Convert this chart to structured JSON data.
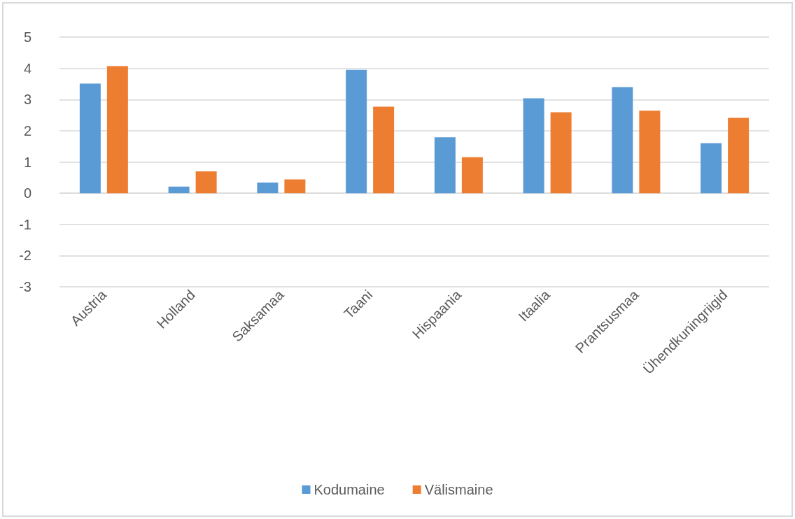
{
  "chart_data": {
    "type": "bar",
    "categories": [
      "Austria",
      "Holland",
      "Saksamaa",
      "Taani",
      "Hispaania",
      "Itaalia",
      "Prantsusmaa",
      "Ühendkuningriigid"
    ],
    "series": [
      {
        "name": "Kodumaine",
        "color": "#5b9bd5",
        "values": [
          3.51,
          0.21,
          0.34,
          3.95,
          1.79,
          3.04,
          3.4,
          1.6
        ]
      },
      {
        "name": "Välismaine",
        "color": "#ed7d31",
        "values": [
          4.07,
          0.7,
          0.44,
          2.77,
          1.15,
          2.59,
          2.64,
          2.41
        ]
      }
    ],
    "ylim": [
      -3,
      5
    ],
    "yticks": [
      -3,
      -2,
      -1,
      0,
      1,
      2,
      3,
      4,
      5
    ],
    "grid": "y",
    "legend": "bottom"
  }
}
